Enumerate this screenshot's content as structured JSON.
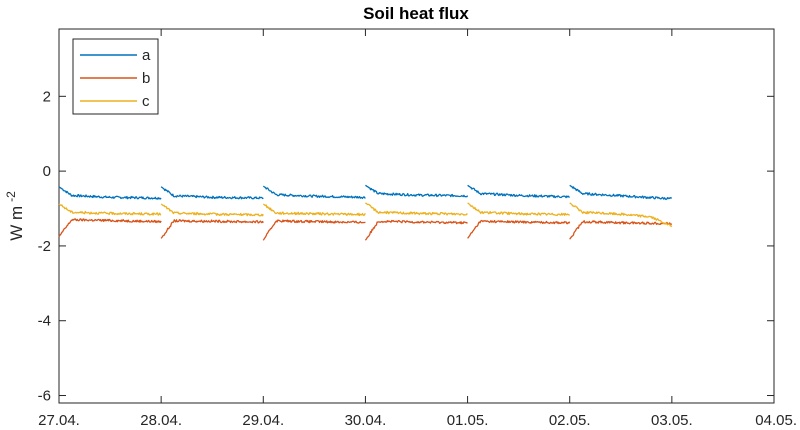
{
  "chart_data": {
    "type": "line",
    "title": "Soil heat flux",
    "xlabel": "",
    "ylabel": "W m",
    "ylabel_exponent": "-2",
    "x_ticks": [
      "27.04.",
      "28.04.",
      "29.04.",
      "30.04.",
      "01.05.",
      "02.05.",
      "03.05.",
      "04.05."
    ],
    "xlim": [
      "27.04.",
      "04.05."
    ],
    "ylim": [
      -6.2,
      3.8
    ],
    "y_ticks": [
      2,
      0,
      -2,
      -4,
      -6
    ],
    "grid": false,
    "legend_position": "top-left",
    "day_segments": [
      {
        "start": "27.04.",
        "end": "28.04."
      },
      {
        "start": "28.04.",
        "end": "29.04."
      },
      {
        "start": "29.04.",
        "end": "30.04."
      },
      {
        "start": "30.04.",
        "end": "01.05."
      },
      {
        "start": "01.05.",
        "end": "02.05."
      },
      {
        "start": "02.05.",
        "end": "03.05."
      }
    ],
    "series": [
      {
        "name": "a",
        "color": "#0072BD",
        "values": [
          {
            "x": "27.04.",
            "y": -0.42
          },
          {
            "x": "27.04. 03:00",
            "y": -0.65
          },
          {
            "x": "27.04. 12:00",
            "y": -0.7
          },
          {
            "x": "28.04.",
            "y": -0.72
          },
          {
            "x": "28.04.",
            "y": -0.42
          },
          {
            "x": "28.04. 03:00",
            "y": -0.66
          },
          {
            "x": "28.04. 12:00",
            "y": -0.7
          },
          {
            "x": "29.04.",
            "y": -0.72
          },
          {
            "x": "29.04.",
            "y": -0.4
          },
          {
            "x": "29.04. 03:00",
            "y": -0.63
          },
          {
            "x": "29.04. 12:00",
            "y": -0.67
          },
          {
            "x": "30.04.",
            "y": -0.7
          },
          {
            "x": "30.04.",
            "y": -0.38
          },
          {
            "x": "30.04. 03:00",
            "y": -0.6
          },
          {
            "x": "30.04. 12:00",
            "y": -0.64
          },
          {
            "x": "01.05.",
            "y": -0.66
          },
          {
            "x": "01.05.",
            "y": -0.38
          },
          {
            "x": "01.05. 03:00",
            "y": -0.6
          },
          {
            "x": "01.05. 12:00",
            "y": -0.65
          },
          {
            "x": "02.05.",
            "y": -0.69
          },
          {
            "x": "02.05.",
            "y": -0.38
          },
          {
            "x": "02.05. 03:00",
            "y": -0.6
          },
          {
            "x": "02.05. 12:00",
            "y": -0.66
          },
          {
            "x": "03.05.",
            "y": -0.74
          }
        ]
      },
      {
        "name": "b",
        "color": "#D95319",
        "values": [
          {
            "x": "27.04.",
            "y": -1.75
          },
          {
            "x": "27.04. 03:00",
            "y": -1.3
          },
          {
            "x": "27.04. 12:00",
            "y": -1.32
          },
          {
            "x": "28.04.",
            "y": -1.35
          },
          {
            "x": "28.04.",
            "y": -1.8
          },
          {
            "x": "28.04. 03:00",
            "y": -1.33
          },
          {
            "x": "28.04. 12:00",
            "y": -1.34
          },
          {
            "x": "29.04.",
            "y": -1.36
          },
          {
            "x": "29.04.",
            "y": -1.85
          },
          {
            "x": "29.04. 03:00",
            "y": -1.33
          },
          {
            "x": "29.04. 12:00",
            "y": -1.35
          },
          {
            "x": "30.04.",
            "y": -1.37
          },
          {
            "x": "30.04.",
            "y": -1.85
          },
          {
            "x": "30.04. 03:00",
            "y": -1.34
          },
          {
            "x": "30.04. 12:00",
            "y": -1.36
          },
          {
            "x": "01.05.",
            "y": -1.38
          },
          {
            "x": "01.05.",
            "y": -1.8
          },
          {
            "x": "01.05. 03:00",
            "y": -1.34
          },
          {
            "x": "01.05. 12:00",
            "y": -1.36
          },
          {
            "x": "02.05.",
            "y": -1.38
          },
          {
            "x": "02.05.",
            "y": -1.82
          },
          {
            "x": "02.05. 03:00",
            "y": -1.35
          },
          {
            "x": "02.05. 12:00",
            "y": -1.38
          },
          {
            "x": "03.05.",
            "y": -1.4
          }
        ]
      },
      {
        "name": "c",
        "color": "#EDB120",
        "values": [
          {
            "x": "27.04.",
            "y": -0.88
          },
          {
            "x": "27.04. 03:00",
            "y": -1.1
          },
          {
            "x": "27.04. 12:00",
            "y": -1.13
          },
          {
            "x": "28.04.",
            "y": -1.15
          },
          {
            "x": "28.04.",
            "y": -0.88
          },
          {
            "x": "28.04. 03:00",
            "y": -1.12
          },
          {
            "x": "28.04. 12:00",
            "y": -1.15
          },
          {
            "x": "29.04.",
            "y": -1.17
          },
          {
            "x": "29.04.",
            "y": -0.88
          },
          {
            "x": "29.04. 03:00",
            "y": -1.12
          },
          {
            "x": "29.04. 12:00",
            "y": -1.14
          },
          {
            "x": "30.04.",
            "y": -1.16
          },
          {
            "x": "30.04.",
            "y": -0.85
          },
          {
            "x": "30.04. 03:00",
            "y": -1.1
          },
          {
            "x": "30.04. 12:00",
            "y": -1.13
          },
          {
            "x": "01.05.",
            "y": -1.15
          },
          {
            "x": "01.05.",
            "y": -0.85
          },
          {
            "x": "01.05. 03:00",
            "y": -1.1
          },
          {
            "x": "01.05. 12:00",
            "y": -1.14
          },
          {
            "x": "02.05.",
            "y": -1.16
          },
          {
            "x": "02.05.",
            "y": -0.85
          },
          {
            "x": "02.05. 03:00",
            "y": -1.1
          },
          {
            "x": "02.05. 12:00",
            "y": -1.15
          },
          {
            "x": "02.05. 19:00",
            "y": -1.22
          },
          {
            "x": "03.05.",
            "y": -1.48
          }
        ]
      }
    ]
  }
}
